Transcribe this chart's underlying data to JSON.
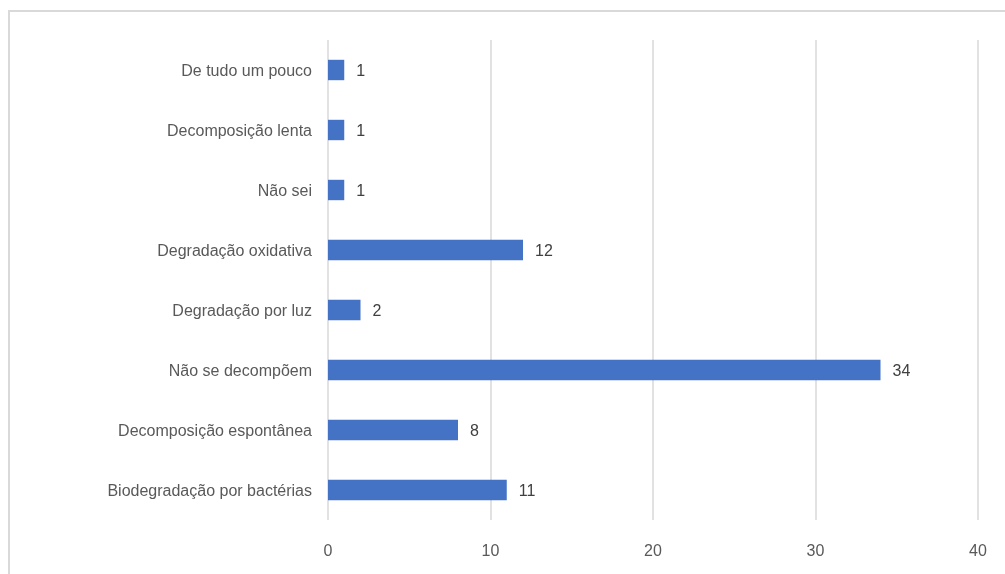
{
  "chart_data": {
    "type": "bar",
    "orientation": "horizontal",
    "categories": [
      "De tudo um pouco",
      "Decomposição lenta",
      "Não sei",
      "Degradação oxidativa",
      "Degradação por luz",
      "Não se decompõem",
      "Decomposição espontânea",
      "Biodegradação por bactérias"
    ],
    "values": [
      1,
      1,
      1,
      12,
      2,
      34,
      8,
      11
    ],
    "color": "#4472c4",
    "xlim": [
      0,
      40
    ],
    "xticks": [
      0,
      10,
      20,
      30,
      40
    ],
    "grid": "x",
    "data_labels": true
  }
}
